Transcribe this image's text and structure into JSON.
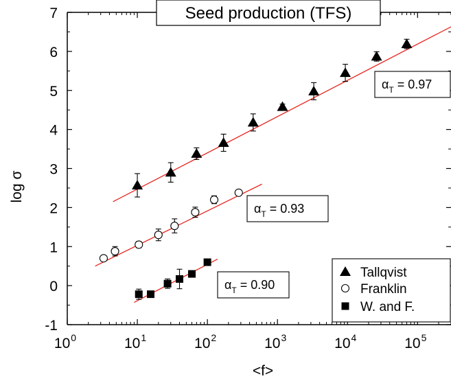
{
  "chart_data": {
    "type": "scatter",
    "title": "Seed production (TFS)",
    "xlabel": "<f>",
    "ylabel": "log σ",
    "xscale": "log",
    "xlim": [
      1,
      300000
    ],
    "ylim": [
      -1,
      7
    ],
    "x_tick_labels": [
      {
        "value": 1,
        "base": "10",
        "exp": "0"
      },
      {
        "value": 10,
        "base": "10",
        "exp": "1"
      },
      {
        "value": 100,
        "base": "10",
        "exp": "2"
      },
      {
        "value": 1000,
        "base": "10",
        "exp": "3"
      },
      {
        "value": 10000,
        "base": "10",
        "exp": "4"
      },
      {
        "value": 100000,
        "base": "10",
        "exp": "5"
      }
    ],
    "y_ticks": [
      -1,
      0,
      1,
      2,
      3,
      4,
      5,
      6,
      7
    ],
    "grid": false,
    "legend_position": "bottom-right",
    "series": [
      {
        "name": "Tallqvist",
        "marker": "triangle-filled",
        "points": [
          {
            "x": 10,
            "y": 2.57,
            "err": 0.3
          },
          {
            "x": 30,
            "y": 2.9,
            "err": 0.25
          },
          {
            "x": 70,
            "y": 3.38,
            "err": 0.15
          },
          {
            "x": 170,
            "y": 3.66,
            "err": 0.22
          },
          {
            "x": 450,
            "y": 4.18,
            "err": 0.22
          },
          {
            "x": 1180,
            "y": 4.58,
            "err": 0.07
          },
          {
            "x": 3300,
            "y": 4.98,
            "err": 0.22
          },
          {
            "x": 9300,
            "y": 5.45,
            "err": 0.22
          },
          {
            "x": 26000,
            "y": 5.87,
            "err": 0.12
          },
          {
            "x": 70000,
            "y": 6.19,
            "err": 0.12
          }
        ],
        "fit": {
          "x": [
            4.5,
            300000
          ],
          "y": [
            2.15,
            6.63
          ]
        },
        "annotation": {
          "alpha_base": "α",
          "alpha_sub": "T",
          "text": " = 0.97"
        }
      },
      {
        "name": "Franklin",
        "marker": "circle-open",
        "points": [
          {
            "x": 3.3,
            "y": 0.7,
            "err": 0.05
          },
          {
            "x": 4.8,
            "y": 0.88,
            "err": 0.12
          },
          {
            "x": 10.5,
            "y": 1.05,
            "err": 0.08
          },
          {
            "x": 20,
            "y": 1.3,
            "err": 0.15
          },
          {
            "x": 34,
            "y": 1.53,
            "err": 0.18
          },
          {
            "x": 67,
            "y": 1.88,
            "err": 0.13
          },
          {
            "x": 125,
            "y": 2.2,
            "err": 0.1
          },
          {
            "x": 280,
            "y": 2.38,
            "err": 0.05
          }
        ],
        "fit": {
          "x": [
            2.5,
            600
          ],
          "y": [
            0.5,
            2.6
          ]
        },
        "annotation": {
          "alpha_base": "α",
          "alpha_sub": "T",
          "text": " = 0.93"
        }
      },
      {
        "name": "W. and F.",
        "marker": "square-filled",
        "points": [
          {
            "x": 10.5,
            "y": -0.22,
            "err": 0.13
          },
          {
            "x": 15.5,
            "y": -0.22,
            "err": 0.03
          },
          {
            "x": 27,
            "y": 0.05,
            "err": 0.12
          },
          {
            "x": 40,
            "y": 0.17,
            "err": 0.25
          },
          {
            "x": 60,
            "y": 0.3,
            "err": 0.05
          },
          {
            "x": 100,
            "y": 0.6,
            "err": 0.05
          }
        ],
        "fit": {
          "x": [
            9,
            140
          ],
          "y": [
            -0.43,
            0.68
          ]
        },
        "annotation": {
          "alpha_base": "α",
          "alpha_sub": "T",
          "text": " = 0.90"
        }
      }
    ]
  }
}
